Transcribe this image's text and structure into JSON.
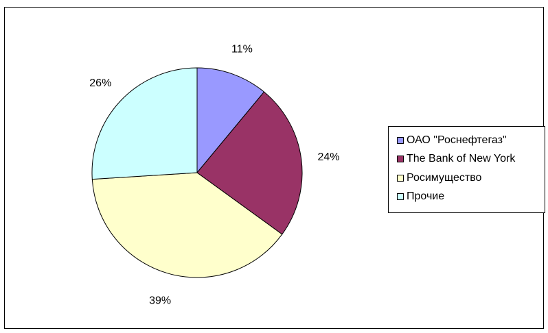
{
  "chart_data": {
    "type": "pie",
    "title": "",
    "categories": [
      "ОАО \"Роснефтегаз\"",
      "The Bank of New York",
      "Росимущество",
      "Прочие"
    ],
    "values": [
      11,
      24,
      39,
      26
    ],
    "labels": [
      "11%",
      "24%",
      "39%",
      "26%"
    ],
    "colors": [
      "#9999ff",
      "#993366",
      "#ffffcc",
      "#ccffff"
    ],
    "legend": "right",
    "start_angle_deg": 90,
    "direction": "clockwise"
  }
}
